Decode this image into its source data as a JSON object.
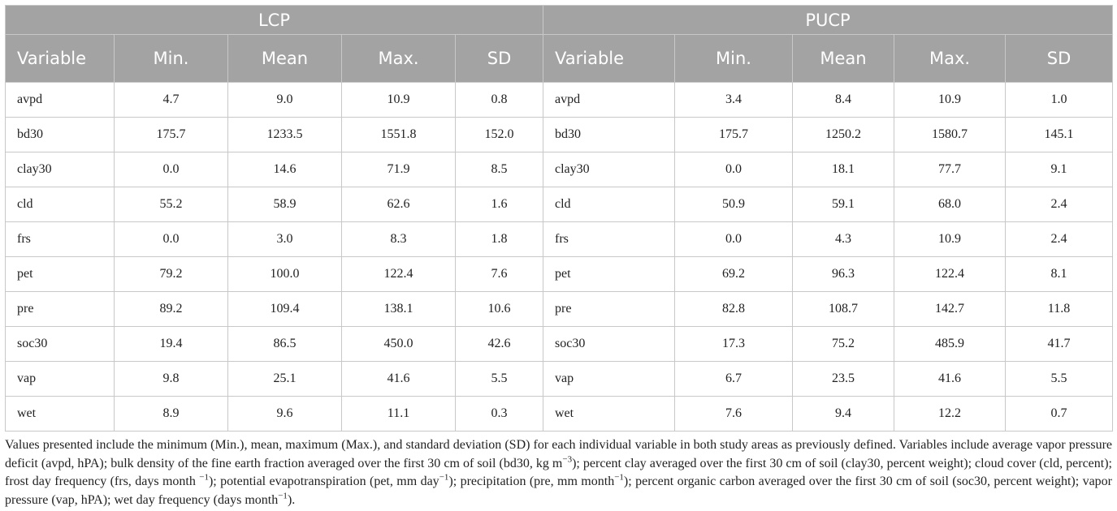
{
  "table": {
    "groups": [
      "LCP",
      "PUCP"
    ],
    "columns": [
      "Variable",
      "Min.",
      "Mean",
      "Max.",
      "SD",
      "Variable",
      "Min.",
      "Mean",
      "Max.",
      "SD"
    ],
    "rows": [
      [
        "avpd",
        "4.7",
        "9.0",
        "10.9",
        "0.8",
        "avpd",
        "3.4",
        "8.4",
        "10.9",
        "1.0"
      ],
      [
        "bd30",
        "175.7",
        "1233.5",
        "1551.8",
        "152.0",
        "bd30",
        "175.7",
        "1250.2",
        "1580.7",
        "145.1"
      ],
      [
        "clay30",
        "0.0",
        "14.6",
        "71.9",
        "8.5",
        "clay30",
        "0.0",
        "18.1",
        "77.7",
        "9.1"
      ],
      [
        "cld",
        "55.2",
        "58.9",
        "62.6",
        "1.6",
        "cld",
        "50.9",
        "59.1",
        "68.0",
        "2.4"
      ],
      [
        "frs",
        "0.0",
        "3.0",
        "8.3",
        "1.8",
        "frs",
        "0.0",
        "4.3",
        "10.9",
        "2.4"
      ],
      [
        "pet",
        "79.2",
        "100.0",
        "122.4",
        "7.6",
        "pet",
        "69.2",
        "96.3",
        "122.4",
        "8.1"
      ],
      [
        "pre",
        "89.2",
        "109.4",
        "138.1",
        "10.6",
        "pre",
        "82.8",
        "108.7",
        "142.7",
        "11.8"
      ],
      [
        "soc30",
        "19.4",
        "86.5",
        "450.0",
        "42.6",
        "soc30",
        "17.3",
        "75.2",
        "485.9",
        "41.7"
      ],
      [
        "vap",
        "9.8",
        "25.1",
        "41.6",
        "5.5",
        "vap",
        "6.7",
        "23.5",
        "41.6",
        "5.5"
      ],
      [
        "wet",
        "8.9",
        "9.6",
        "11.1",
        "0.3",
        "wet",
        "7.6",
        "9.4",
        "12.2",
        "0.7"
      ]
    ]
  },
  "caption": [
    {
      "text": "Values presented include the minimum (Min.), mean, maximum (Max.), and standard deviation (SD) for each individual variable in both study areas as previously defined. Variables include average vapor pressure deficit (avpd, hPA); bulk density of the fine earth fraction averaged over the first 30 cm of soil (bd30, kg m"
    },
    {
      "sup": "−3"
    },
    {
      "text": "); percent clay averaged over the first 30 cm of soil (clay30, percent weight); cloud cover (cld, percent); frost day frequency (frs, days month "
    },
    {
      "sup": "−1"
    },
    {
      "text": "); potential evapotranspiration (pet, mm day"
    },
    {
      "sup": "−1"
    },
    {
      "text": "); precipitation (pre, mm month"
    },
    {
      "sup": "−1"
    },
    {
      "text": "); percent organic carbon averaged over the first 30 cm of soil (soc30, percent weight); vapor pressure (vap, hPA); wet day frequency (days month"
    },
    {
      "sup": "−1"
    },
    {
      "text": ")."
    }
  ]
}
